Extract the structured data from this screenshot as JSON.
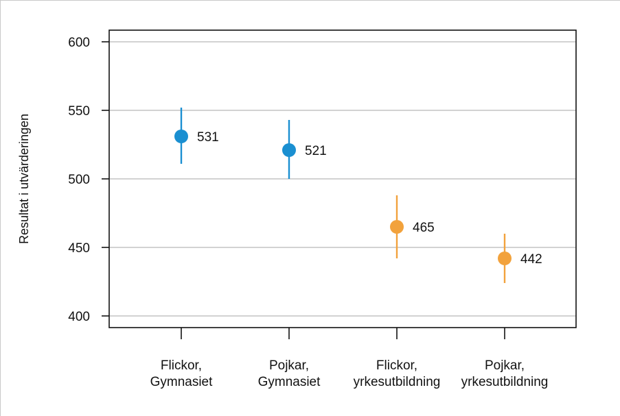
{
  "chart_data": {
    "type": "scatter",
    "title": "",
    "ylabel": "Resultat i utvärderingen",
    "xlabel": "",
    "ylim": [
      400,
      600
    ],
    "yticks": [
      400,
      450,
      500,
      550,
      600
    ],
    "grid": true,
    "categories": [
      [
        "Flickor,",
        "Gymnasiet"
      ],
      [
        "Pojkar,",
        "Gymnasiet"
      ],
      [
        "Flickor,",
        "yrkesutbildning"
      ],
      [
        "Pojkar,",
        "yrkesutbildning"
      ]
    ],
    "values": [
      531,
      521,
      465,
      442
    ],
    "error_low": [
      511,
      500,
      442,
      424
    ],
    "error_high": [
      552,
      543,
      488,
      460
    ],
    "point_labels": [
      "531",
      "521",
      "465",
      "442"
    ],
    "point_colors": [
      "#1a8fd1",
      "#1a8fd1",
      "#f2a23c",
      "#f2a23c"
    ]
  }
}
